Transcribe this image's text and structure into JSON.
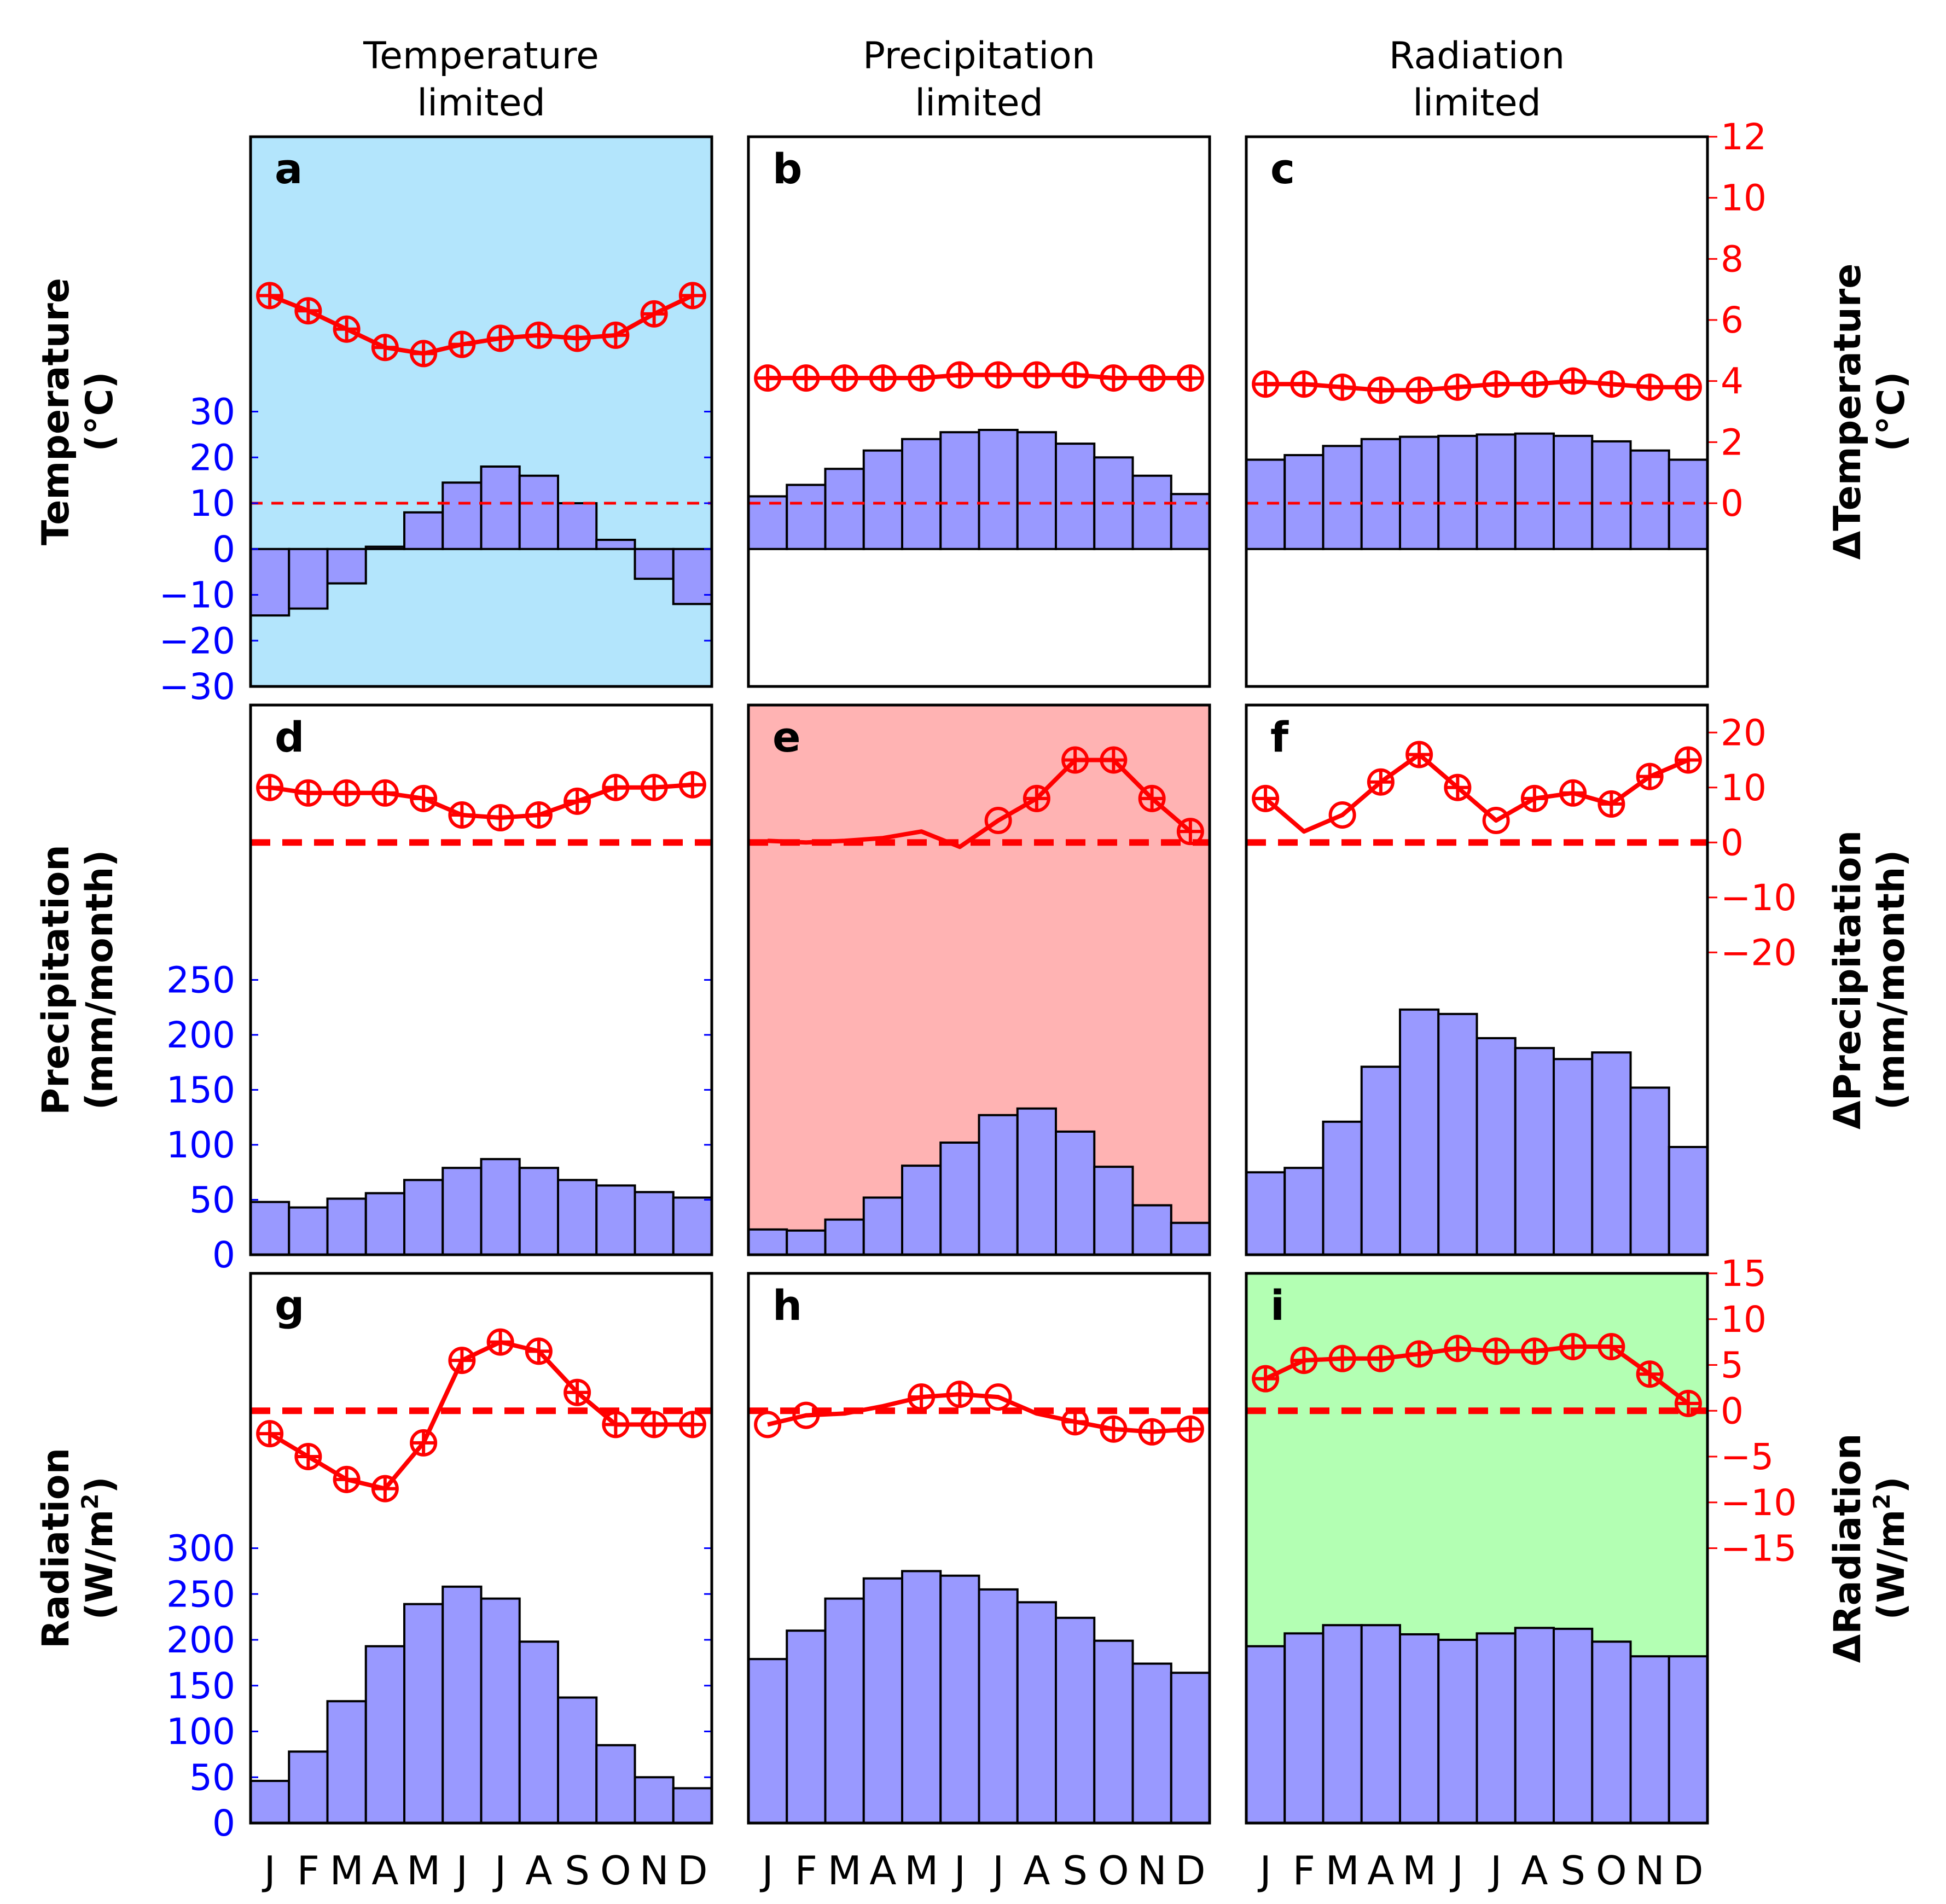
{
  "chart_data": {
    "type": "bar",
    "months": [
      "J",
      "F",
      "M",
      "A",
      "M",
      "J",
      "J",
      "A",
      "S",
      "O",
      "N",
      "D"
    ],
    "columns": [
      "Temperature\nlimited",
      "Precipitation\nlimited",
      "Radiation\nlimited"
    ],
    "colors": {
      "bar_fill": "#9999ff",
      "line": "#ff0000",
      "left_axis": "#0000ff",
      "right_axis": "#ff0000",
      "temperature_limited_bg": "#b3e5fc",
      "precipitation_limited_bg": "#ffb3b3",
      "radiation_limited_bg": "#b3ffb3"
    },
    "rows": [
      {
        "variable": "Temperature",
        "ylabel": "Temperature\n(°C)",
        "right_ylabel": "ΔTemperature\n(°C)",
        "left_ticks": [
          30,
          20,
          10,
          0,
          -10,
          -20,
          -30
        ],
        "left_ylim": [
          -30,
          90
        ],
        "right_ticks": [
          12,
          10,
          8,
          6,
          4,
          2,
          0
        ],
        "right_ylim": [
          -6,
          12
        ],
        "panels": [
          {
            "letter": "a",
            "background": "temperature_limited_bg",
            "bars": [
              -14.5,
              -13,
              -7.5,
              0.5,
              8,
              14.5,
              18,
              16,
              10,
              2,
              -6.5,
              -12
            ],
            "delta": [
              6.8,
              6.3,
              5.7,
              5.1,
              4.9,
              5.2,
              5.4,
              5.5,
              5.4,
              5.5,
              6.2,
              6.8
            ],
            "delta_markers": [
              1,
              1,
              1,
              1,
              1,
              1,
              1,
              1,
              1,
              1,
              1,
              1
            ]
          },
          {
            "letter": "b",
            "background": "none",
            "bars": [
              11.5,
              14,
              17.5,
              21.5,
              24,
              25.5,
              26,
              25.5,
              23,
              20,
              16,
              12
            ],
            "delta": [
              4.1,
              4.1,
              4.1,
              4.1,
              4.1,
              4.2,
              4.2,
              4.2,
              4.2,
              4.1,
              4.1,
              4.1
            ],
            "delta_markers": [
              1,
              1,
              1,
              1,
              1,
              1,
              1,
              1,
              1,
              1,
              1,
              1
            ]
          },
          {
            "letter": "c",
            "background": "none",
            "bars": [
              19.5,
              20.5,
              22.5,
              24,
              24.5,
              24.7,
              25,
              25.2,
              24.7,
              23.5,
              21.5,
              19.5
            ],
            "delta": [
              3.9,
              3.9,
              3.8,
              3.7,
              3.7,
              3.8,
              3.9,
              3.9,
              4.0,
              3.9,
              3.8,
              3.8
            ],
            "delta_markers": [
              1,
              1,
              1,
              1,
              1,
              1,
              1,
              1,
              1,
              1,
              1,
              1
            ]
          }
        ]
      },
      {
        "variable": "Precipitation",
        "ylabel": "Precipitation\n(mm/month)",
        "right_ylabel": "ΔPrecipitation\n(mm/month)",
        "left_ticks": [
          250,
          200,
          150,
          100,
          50,
          0
        ],
        "left_ylim": [
          0,
          500
        ],
        "right_ticks": [
          20,
          10,
          0,
          -10,
          -20
        ],
        "right_ylim": [
          -75,
          25
        ],
        "panels": [
          {
            "letter": "d",
            "background": "none",
            "bars": [
              48,
              43,
              51,
              56,
              68,
              79,
              87,
              79,
              68,
              63,
              57,
              52
            ],
            "delta": [
              10,
              9,
              9,
              9,
              8,
              5,
              4.5,
              5,
              7.5,
              10,
              10,
              10.5
            ],
            "delta_markers": [
              1,
              1,
              1,
              1,
              1,
              1,
              1,
              1,
              1,
              1,
              1,
              1
            ]
          },
          {
            "letter": "e",
            "background": "precipitation_limited_bg",
            "bars": [
              23,
              22,
              32,
              52,
              81,
              102,
              127,
              133,
              112,
              80,
              45,
              29
            ],
            "delta": [
              0.3,
              0,
              0.3,
              0.8,
              2,
              -0.8,
              4,
              8,
              15,
              15,
              8,
              2
            ],
            "delta_markers": [
              0,
              0,
              0,
              0,
              0,
              0,
              2,
              1,
              1,
              1,
              1,
              1
            ]
          },
          {
            "letter": "f",
            "background": "none",
            "bars": [
              75,
              79,
              121,
              171,
              223,
              219,
              197,
              188,
              178,
              184,
              152,
              98
            ],
            "delta": [
              8,
              2,
              5,
              11,
              16,
              10,
              4,
              8,
              9,
              7,
              12,
              15
            ],
            "delta_markers": [
              1,
              0,
              2,
              1,
              1,
              1,
              2,
              1,
              1,
              1,
              1,
              1
            ]
          }
        ]
      },
      {
        "variable": "Radiation",
        "ylabel": "Radiation\n(W/m2)",
        "right_ylabel": "ΔRadiation\n(W/m2)",
        "left_ticks": [
          300,
          250,
          200,
          150,
          100,
          50,
          0
        ],
        "left_ylim": [
          0,
          600
        ],
        "right_ticks": [
          15,
          10,
          5,
          0,
          -5,
          -10,
          -15
        ],
        "right_ylim": [
          -45,
          15
        ],
        "panels": [
          {
            "letter": "g",
            "background": "none",
            "bars": [
              46,
              78,
              133,
              193,
              239,
              258,
              245,
              198,
              137,
              85,
              50,
              38
            ],
            "delta": [
              -2.5,
              -5,
              -7.5,
              -8.5,
              -3.5,
              5.5,
              7.5,
              6.5,
              2,
              -1.5,
              -1.5,
              -1.5
            ],
            "delta_markers": [
              1,
              1,
              1,
              1,
              1,
              1,
              1,
              1,
              1,
              1,
              1,
              1
            ]
          },
          {
            "letter": "h",
            "background": "none",
            "bars": [
              179,
              210,
              245,
              267,
              275,
              270,
              255,
              241,
              224,
              199,
              174,
              164
            ],
            "delta": [
              -1.5,
              -0.5,
              -0.3,
              0.5,
              1.5,
              1.8,
              1.5,
              -0.3,
              -1.2,
              -2,
              -2.3,
              -2
            ],
            "delta_markers": [
              2,
              2,
              0,
              0,
              1,
              1,
              2,
              0,
              1,
              1,
              1,
              1
            ]
          },
          {
            "letter": "i",
            "background": "radiation_limited_bg",
            "bars": [
              193,
              207,
              216,
              216,
              206,
              200,
              207,
              213,
              212,
              198,
              182,
              182
            ],
            "delta": [
              3.5,
              5.5,
              5.7,
              5.7,
              6.2,
              6.8,
              6.5,
              6.5,
              7,
              7,
              4,
              0.8
            ],
            "delta_markers": [
              1,
              1,
              1,
              1,
              1,
              1,
              1,
              1,
              1,
              1,
              1,
              1
            ]
          }
        ]
      }
    ]
  }
}
